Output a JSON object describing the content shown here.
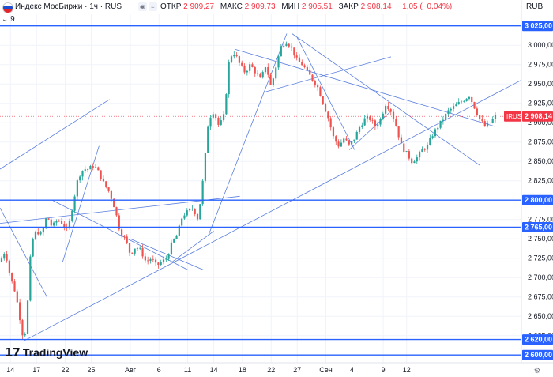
{
  "header": {
    "title": "Индекс МосБиржи · 1ч · RUS",
    "open_label": "ОТКР",
    "open_value": "2 909,27",
    "high_label": "МАКС",
    "high_value": "2 909,73",
    "low_label": "МИН",
    "low_value": "2 905,51",
    "close_label": "ЗАКР",
    "close_value": "2 908,14",
    "change": "−1,05 (−0,04%)",
    "currency": "RUB",
    "indicators_count": "9"
  },
  "icons": {
    "flag": "russia-flag-icon",
    "toggle": "chevron-down-icon",
    "wave": "wave-icon"
  },
  "colors": {
    "up": "#26a69a",
    "down": "#ef5350",
    "line": "#2962ff",
    "trend": "#5b7fe0",
    "price_tag": "#f23645"
  },
  "branding": {
    "name": "TradingView"
  },
  "chart_data": {
    "type": "candlestick",
    "timeframe": "1h",
    "symbol": "IRUS",
    "y_axis": {
      "range": [
        2590,
        3040
      ],
      "ticks": [
        2600,
        2625,
        2650,
        2675,
        2700,
        2725,
        2750,
        2775,
        2800,
        2825,
        2850,
        2875,
        2900,
        2925,
        2950,
        2975,
        3000,
        3025
      ],
      "tick_labels": [
        "2 600,00",
        "2 625,00",
        "2 650,00",
        "2 675,00",
        "2 700,00",
        "2 725,00",
        "2 750,00",
        "2 775,00",
        "2 800,00",
        "2 825,00",
        "2 850,00",
        "2 875,00",
        "2 900,00",
        "2 925,00",
        "2 950,00",
        "2 975,00",
        "3 000,00",
        "3 025,00"
      ]
    },
    "x_axis": {
      "labels": [
        "14",
        "17",
        "22",
        "25",
        "Авг",
        "6",
        "11",
        "14",
        "18",
        "22",
        "27",
        "Сен",
        "4",
        "9",
        "12"
      ],
      "positions": [
        0.02,
        0.07,
        0.125,
        0.175,
        0.25,
        0.305,
        0.36,
        0.41,
        0.465,
        0.52,
        0.57,
        0.625,
        0.675,
        0.735,
        0.78
      ]
    },
    "horizontal_levels": [
      {
        "value": 3025,
        "label": "3 025,00"
      },
      {
        "value": 2800,
        "label": "2 800,00"
      },
      {
        "value": 2765,
        "label": "2 765,00"
      },
      {
        "value": 2620,
        "label": "2 620,00"
      },
      {
        "value": 2600,
        "label": "2 600,00"
      }
    ],
    "last_price": {
      "symbol": "IRUS",
      "value": 2908.14,
      "label": "2 908,14"
    },
    "close_path": [
      [
        0.0,
        2720
      ],
      [
        0.01,
        2735
      ],
      [
        0.02,
        2700
      ],
      [
        0.03,
        2680
      ],
      [
        0.04,
        2640
      ],
      [
        0.045,
        2620
      ],
      [
        0.05,
        2635
      ],
      [
        0.06,
        2745
      ],
      [
        0.07,
        2760
      ],
      [
        0.08,
        2755
      ],
      [
        0.09,
        2780
      ],
      [
        0.1,
        2765
      ],
      [
        0.11,
        2775
      ],
      [
        0.12,
        2770
      ],
      [
        0.13,
        2760
      ],
      [
        0.15,
        2830
      ],
      [
        0.16,
        2840
      ],
      [
        0.17,
        2840
      ],
      [
        0.18,
        2845
      ],
      [
        0.19,
        2835
      ],
      [
        0.2,
        2820
      ],
      [
        0.21,
        2810
      ],
      [
        0.22,
        2790
      ],
      [
        0.23,
        2760
      ],
      [
        0.24,
        2750
      ],
      [
        0.25,
        2730
      ],
      [
        0.26,
        2740
      ],
      [
        0.27,
        2735
      ],
      [
        0.28,
        2720
      ],
      [
        0.29,
        2725
      ],
      [
        0.3,
        2715
      ],
      [
        0.31,
        2720
      ],
      [
        0.32,
        2725
      ],
      [
        0.33,
        2745
      ],
      [
        0.34,
        2755
      ],
      [
        0.35,
        2780
      ],
      [
        0.36,
        2785
      ],
      [
        0.37,
        2790
      ],
      [
        0.38,
        2775
      ],
      [
        0.39,
        2830
      ],
      [
        0.4,
        2905
      ],
      [
        0.41,
        2915
      ],
      [
        0.42,
        2895
      ],
      [
        0.43,
        2910
      ],
      [
        0.44,
        2985
      ],
      [
        0.45,
        2990
      ],
      [
        0.46,
        2975
      ],
      [
        0.47,
        2965
      ],
      [
        0.48,
        2975
      ],
      [
        0.49,
        2965
      ],
      [
        0.5,
        2955
      ],
      [
        0.51,
        2975
      ],
      [
        0.52,
        2945
      ],
      [
        0.53,
        2975
      ],
      [
        0.54,
        3000
      ],
      [
        0.55,
        3005
      ],
      [
        0.56,
        2995
      ],
      [
        0.57,
        2980
      ],
      [
        0.58,
        2975
      ],
      [
        0.59,
        2965
      ],
      [
        0.6,
        2955
      ],
      [
        0.61,
        2945
      ],
      [
        0.62,
        2925
      ],
      [
        0.63,
        2905
      ],
      [
        0.64,
        2880
      ],
      [
        0.65,
        2870
      ],
      [
        0.66,
        2880
      ],
      [
        0.67,
        2870
      ],
      [
        0.68,
        2880
      ],
      [
        0.69,
        2895
      ],
      [
        0.7,
        2905
      ],
      [
        0.71,
        2905
      ],
      [
        0.72,
        2895
      ],
      [
        0.73,
        2905
      ],
      [
        0.74,
        2925
      ],
      [
        0.75,
        2915
      ],
      [
        0.76,
        2895
      ],
      [
        0.77,
        2870
      ],
      [
        0.78,
        2860
      ],
      [
        0.79,
        2850
      ],
      [
        0.8,
        2855
      ],
      [
        0.81,
        2865
      ],
      [
        0.82,
        2870
      ],
      [
        0.83,
        2885
      ],
      [
        0.84,
        2895
      ],
      [
        0.85,
        2905
      ],
      [
        0.86,
        2915
      ],
      [
        0.87,
        2920
      ],
      [
        0.88,
        2925
      ],
      [
        0.89,
        2930
      ],
      [
        0.9,
        2935
      ],
      [
        0.91,
        2920
      ],
      [
        0.92,
        2905
      ],
      [
        0.93,
        2895
      ],
      [
        0.94,
        2900
      ],
      [
        0.95,
        2908
      ]
    ],
    "trend_lines": [
      {
        "x1": 0.045,
        "y1": 2618,
        "x2": 1.0,
        "y2": 2955
      },
      {
        "x1": 0.0,
        "y1": 2790,
        "x2": 0.09,
        "y2": 2675
      },
      {
        "x1": 0.0,
        "y1": 2770,
        "x2": 0.46,
        "y2": 2805
      },
      {
        "x1": 0.0,
        "y1": 2840,
        "x2": 0.21,
        "y2": 2930
      },
      {
        "x1": 0.1,
        "y1": 2800,
        "x2": 0.36,
        "y2": 2710
      },
      {
        "x1": 0.12,
        "y1": 2720,
        "x2": 0.19,
        "y2": 2870
      },
      {
        "x1": 0.25,
        "y1": 2750,
        "x2": 0.39,
        "y2": 2710
      },
      {
        "x1": 0.33,
        "y1": 2720,
        "x2": 0.41,
        "y2": 2760
      },
      {
        "x1": 0.4,
        "y1": 2755,
        "x2": 0.55,
        "y2": 3015
      },
      {
        "x1": 0.51,
        "y1": 2940,
        "x2": 0.75,
        "y2": 2985
      },
      {
        "x1": 0.45,
        "y1": 2995,
        "x2": 0.95,
        "y2": 2895
      },
      {
        "x1": 0.56,
        "y1": 3015,
        "x2": 0.92,
        "y2": 2845
      },
      {
        "x1": 0.57,
        "y1": 3010,
        "x2": 0.68,
        "y2": 2865
      },
      {
        "x1": 0.67,
        "y1": 2865,
        "x2": 0.75,
        "y2": 2915
      }
    ]
  }
}
